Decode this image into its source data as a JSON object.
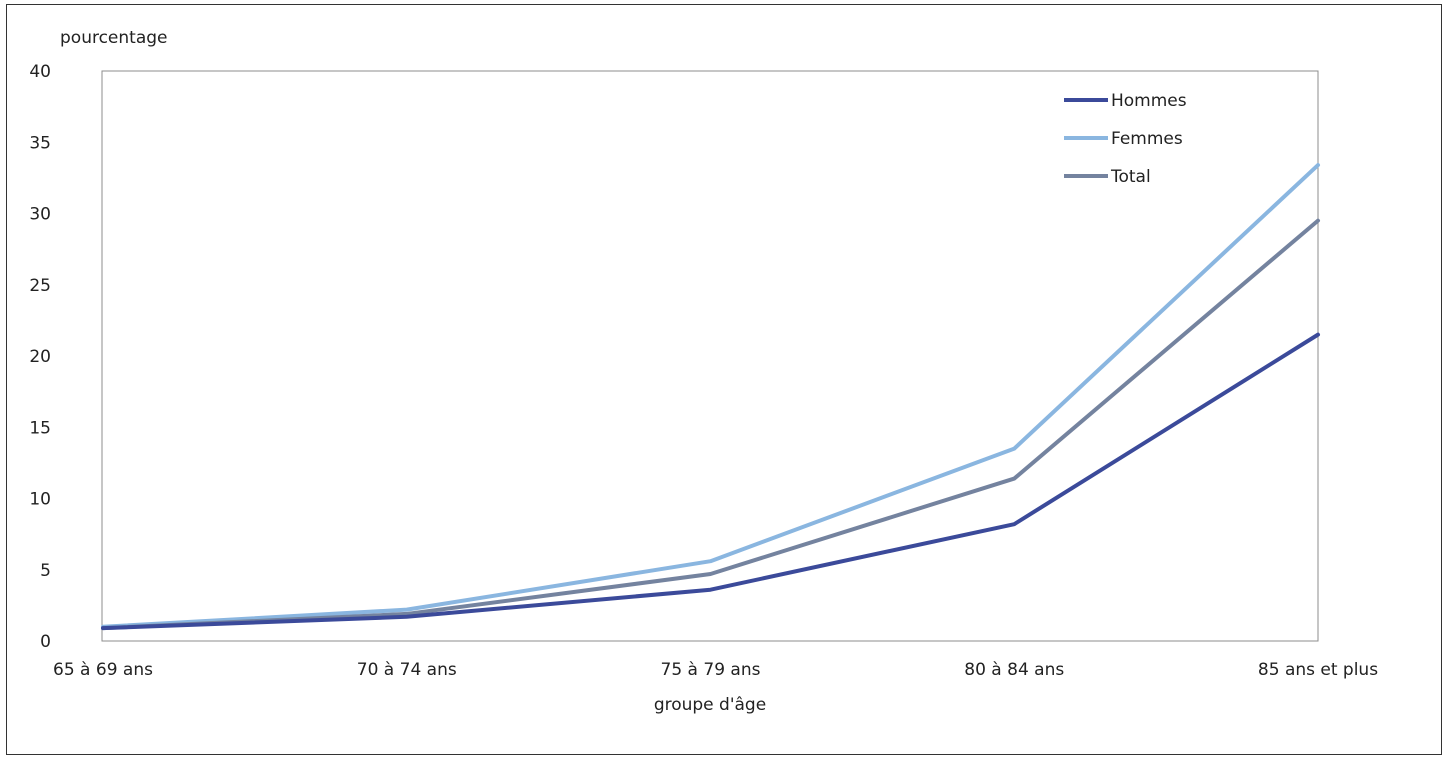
{
  "chart_data": {
    "type": "line",
    "title": "",
    "ylabel": "pourcentage",
    "xlabel": "groupe d'âge",
    "categories": [
      "65 à 69 ans",
      "70 à 74 ans",
      "75 à 79 ans",
      "80 à 84 ans",
      "85 ans et plus"
    ],
    "ylim": [
      0,
      40
    ],
    "yticks": [
      0,
      5,
      10,
      15,
      20,
      25,
      30,
      35,
      40
    ],
    "grid": false,
    "legend_position": "top-right",
    "series": [
      {
        "name": "Hommes",
        "color": "#3b4a9a",
        "values": [
          0.9,
          1.7,
          3.6,
          8.2,
          21.5
        ]
      },
      {
        "name": "Femmes",
        "color": "#8ab6e0",
        "values": [
          1.0,
          2.2,
          5.6,
          13.5,
          33.4
        ]
      },
      {
        "name": "Total",
        "color": "#74839f",
        "values": [
          0.9,
          1.9,
          4.7,
          11.4,
          29.5
        ]
      }
    ]
  }
}
